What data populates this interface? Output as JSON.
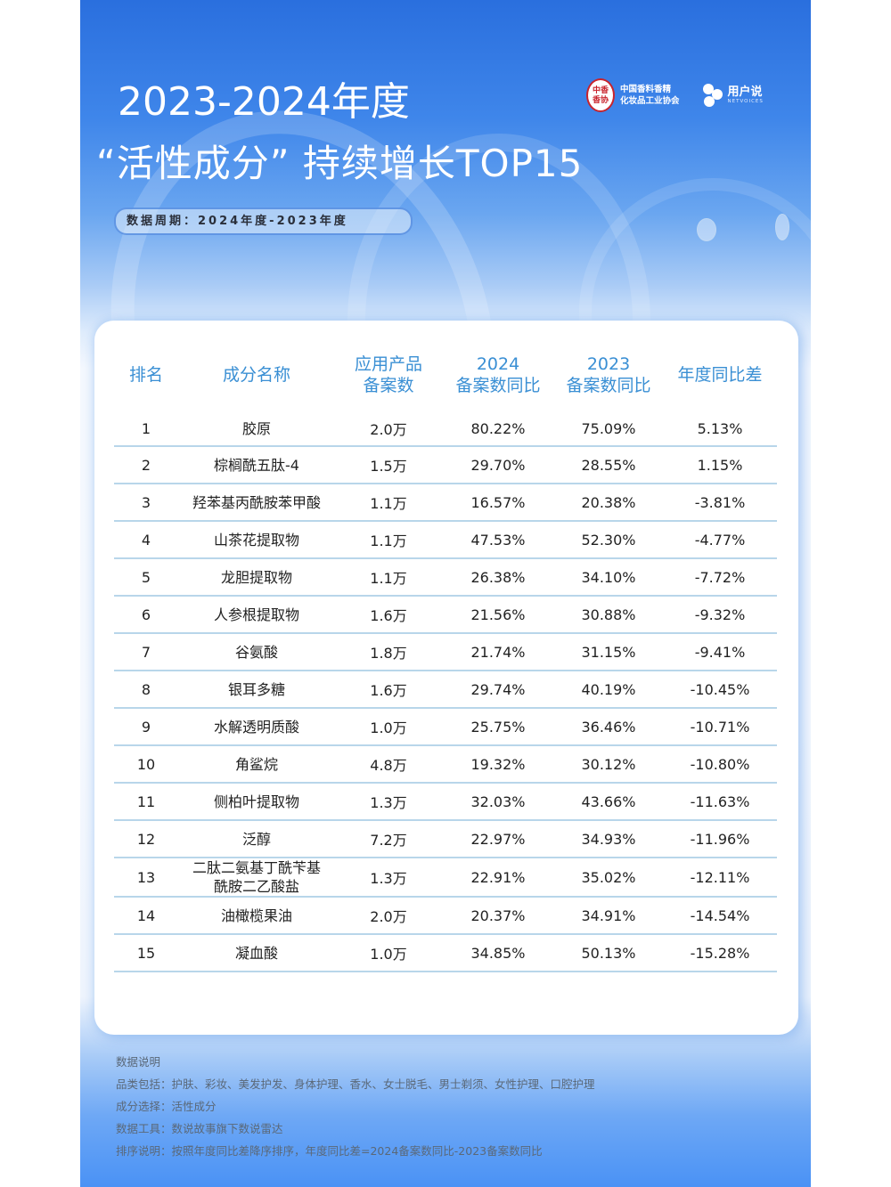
{
  "header": {
    "title_line1": "2023-2024年度",
    "title_line2": "“活性成分” 持续增长TOP15",
    "period_badge": "数据周期：2024年度-2023年度"
  },
  "logos": {
    "association": {
      "seal_text_top": "中香",
      "seal_text_bottom": "香协",
      "name_line1": "中国香料香精",
      "name_line2": "化妆品工业协会"
    },
    "netvoices": {
      "name": "用户说",
      "sub": "NETVOICES"
    }
  },
  "table": {
    "columns": [
      {
        "key": "rank",
        "label_line1": "排名",
        "label_line2": ""
      },
      {
        "key": "name",
        "label_line1": "成分名称",
        "label_line2": ""
      },
      {
        "key": "count",
        "label_line1": "应用产品",
        "label_line2": "备案数"
      },
      {
        "key": "yoy_2024",
        "label_line1": "2024",
        "label_line2": "备案数同比"
      },
      {
        "key": "yoy_2023",
        "label_line1": "2023",
        "label_line2": "备案数同比"
      },
      {
        "key": "diff",
        "label_line1": "年度同比差",
        "label_line2": ""
      }
    ],
    "rows": [
      {
        "rank": "1",
        "name": "胶原",
        "name2": "",
        "count": "2.0万",
        "yoy_2024": "80.22%",
        "yoy_2023": "75.09%",
        "diff": "5.13%"
      },
      {
        "rank": "2",
        "name": "棕榈酰五肽-4",
        "name2": "",
        "count": "1.5万",
        "yoy_2024": "29.70%",
        "yoy_2023": "28.55%",
        "diff": "1.15%"
      },
      {
        "rank": "3",
        "name": "羟苯基丙酰胺苯甲酸",
        "name2": "",
        "count": "1.1万",
        "yoy_2024": "16.57%",
        "yoy_2023": "20.38%",
        "diff": "-3.81%"
      },
      {
        "rank": "4",
        "name": "山茶花提取物",
        "name2": "",
        "count": "1.1万",
        "yoy_2024": "47.53%",
        "yoy_2023": "52.30%",
        "diff": "-4.77%"
      },
      {
        "rank": "5",
        "name": "龙胆提取物",
        "name2": "",
        "count": "1.1万",
        "yoy_2024": "26.38%",
        "yoy_2023": "34.10%",
        "diff": "-7.72%"
      },
      {
        "rank": "6",
        "name": "人参根提取物",
        "name2": "",
        "count": "1.6万",
        "yoy_2024": "21.56%",
        "yoy_2023": "30.88%",
        "diff": "-9.32%"
      },
      {
        "rank": "7",
        "name": "谷氨酸",
        "name2": "",
        "count": "1.8万",
        "yoy_2024": "21.74%",
        "yoy_2023": "31.15%",
        "diff": "-9.41%"
      },
      {
        "rank": "8",
        "name": "银耳多糖",
        "name2": "",
        "count": "1.6万",
        "yoy_2024": "29.74%",
        "yoy_2023": "40.19%",
        "diff": "-10.45%"
      },
      {
        "rank": "9",
        "name": "水解透明质酸",
        "name2": "",
        "count": "1.0万",
        "yoy_2024": "25.75%",
        "yoy_2023": "36.46%",
        "diff": "-10.71%"
      },
      {
        "rank": "10",
        "name": "角鲨烷",
        "name2": "",
        "count": "4.8万",
        "yoy_2024": "19.32%",
        "yoy_2023": "30.12%",
        "diff": "-10.80%"
      },
      {
        "rank": "11",
        "name": "侧柏叶提取物",
        "name2": "",
        "count": "1.3万",
        "yoy_2024": "32.03%",
        "yoy_2023": "43.66%",
        "diff": "-11.63%"
      },
      {
        "rank": "12",
        "name": "泛醇",
        "name2": "",
        "count": "7.2万",
        "yoy_2024": "22.97%",
        "yoy_2023": "34.93%",
        "diff": "-11.96%"
      },
      {
        "rank": "13",
        "name": "二肽二氨基丁酰苄基",
        "name2": "酰胺二乙酸盐",
        "count": "1.3万",
        "yoy_2024": "22.91%",
        "yoy_2023": "35.02%",
        "diff": "-12.11%"
      },
      {
        "rank": "14",
        "name": "油橄榄果油",
        "name2": "",
        "count": "2.0万",
        "yoy_2024": "20.37%",
        "yoy_2023": "34.91%",
        "diff": "-14.54%"
      },
      {
        "rank": "15",
        "name": "凝血酸",
        "name2": "",
        "count": "1.0万",
        "yoy_2024": "34.85%",
        "yoy_2023": "50.13%",
        "diff": "-15.28%"
      }
    ]
  },
  "notes": {
    "heading": "数据说明",
    "categories": "品类包括：护肤、彩妆、美发护发、身体护理、香水、女士脱毛、男士剃须、女性护理、口腔护理",
    "ingredient_selection": "成分选择：活性成分",
    "data_tool": "数据工具：数说故事旗下数说雷达",
    "sort_description": "排序说明：按照年度同比差降序排序，年度同比差=2024备案数同比-2023备案数同比"
  },
  "colors": {
    "header_blue": "#2a6fde",
    "table_header_text": "#3a8fd4",
    "row_divider": "#b8d6ea",
    "seal_red": "#c8232c"
  },
  "chart_data": {
    "type": "table",
    "title": "2023-2024年度 “活性成分” 持续增长TOP15",
    "subtitle": "数据周期：2024年度-2023年度",
    "columns": [
      "排名",
      "成分名称",
      "应用产品备案数",
      "2024备案数同比",
      "2023备案数同比",
      "年度同比差"
    ],
    "rows": [
      [
        1,
        "胶原",
        "2.0万",
        80.22,
        75.09,
        5.13
      ],
      [
        2,
        "棕榈酰五肽-4",
        "1.5万",
        29.7,
        28.55,
        1.15
      ],
      [
        3,
        "羟苯基丙酰胺苯甲酸",
        "1.1万",
        16.57,
        20.38,
        -3.81
      ],
      [
        4,
        "山茶花提取物",
        "1.1万",
        47.53,
        52.3,
        -4.77
      ],
      [
        5,
        "龙胆提取物",
        "1.1万",
        26.38,
        34.1,
        -7.72
      ],
      [
        6,
        "人参根提取物",
        "1.6万",
        21.56,
        30.88,
        -9.32
      ],
      [
        7,
        "谷氨酸",
        "1.8万",
        21.74,
        31.15,
        -9.41
      ],
      [
        8,
        "银耳多糖",
        "1.6万",
        29.74,
        40.19,
        -10.45
      ],
      [
        9,
        "水解透明质酸",
        "1.0万",
        25.75,
        36.46,
        -10.71
      ],
      [
        10,
        "角鲨烷",
        "4.8万",
        19.32,
        30.12,
        -10.8
      ],
      [
        11,
        "侧柏叶提取物",
        "1.3万",
        32.03,
        43.66,
        -11.63
      ],
      [
        12,
        "泛醇",
        "7.2万",
        22.97,
        34.93,
        -11.96
      ],
      [
        13,
        "二肽二氨基丁酰苄基酰胺二乙酸盐",
        "1.3万",
        22.91,
        35.02,
        -12.11
      ],
      [
        14,
        "油橄榄果油",
        "2.0万",
        20.37,
        34.91,
        -14.54
      ],
      [
        15,
        "凝血酸",
        "1.0万",
        34.85,
        50.13,
        -15.28
      ]
    ],
    "units": {
      "yoy_2024": "%",
      "yoy_2023": "%",
      "diff": "%"
    }
  }
}
